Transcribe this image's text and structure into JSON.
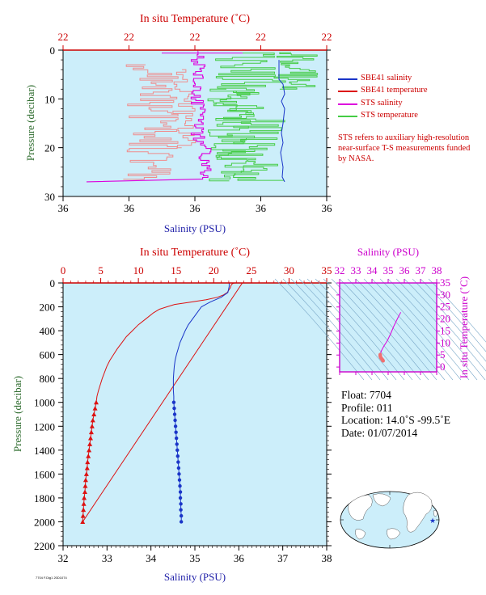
{
  "colors": {
    "plot_bg": "#cceefa",
    "temp_axis": "#cc0000",
    "salinity_axis_label": "#1f1fa8",
    "pressure_axis_label": "#2d6b2d",
    "ts_axis": "#cc00cc",
    "sbe41_salinity": "#1a35c8",
    "sbe41_temperature": "#dd1111",
    "sts_salinity": "#dd00dd",
    "sts_temperature": "#44cc44",
    "sts_temperature_top": "#f08c8c"
  },
  "top_panel": {
    "title_temp": "In situ Temperature (˚C)",
    "temp_ticks": [
      "22",
      "22",
      "22",
      "22",
      "22"
    ],
    "xlabel": "Salinity (PSU)",
    "sal_ticks": [
      "36",
      "36",
      "36",
      "36",
      "36"
    ],
    "ylabel": "Pressure (decibar)",
    "p_ticks": [
      "0",
      "10",
      "20",
      "30"
    ]
  },
  "legend": {
    "items": [
      {
        "label": "SBE41 salinity",
        "color": "#1a35c8"
      },
      {
        "label": "SBE41 temperature",
        "color": "#dd1111"
      },
      {
        "label": "STS salinity",
        "color": "#dd00dd"
      },
      {
        "label": "STS temperature",
        "color": "#44cc44"
      }
    ],
    "note": "STS refers to auxiliary high-resolution near-surface T-S measurements funded by NASA."
  },
  "main_panel": {
    "title_temp": "In situ Temperature (˚C)",
    "temp_ticks": [
      "0",
      "5",
      "10",
      "15",
      "20",
      "25",
      "30",
      "35"
    ],
    "xlabel": "Salinity (PSU)",
    "sal_ticks": [
      "32",
      "33",
      "34",
      "35",
      "36",
      "37",
      "38"
    ],
    "ylabel": "Pressure (decibar)",
    "p_ticks": [
      "0",
      "200",
      "400",
      "600",
      "800",
      "1000",
      "1200",
      "1400",
      "1600",
      "1800",
      "2000",
      "2200"
    ]
  },
  "ts_panel": {
    "title": "Salinity (PSU)",
    "x_ticks": [
      "32",
      "33",
      "34",
      "35",
      "36",
      "37",
      "38"
    ],
    "ylabel": "In situ Temperature (˚C)",
    "y_ticks": [
      "0",
      "5",
      "10",
      "15",
      "20",
      "25",
      "30",
      "35"
    ]
  },
  "float_info": {
    "float": "Float:  7704",
    "profile": "Profile:  011",
    "location": "Location:  14.0˚S  -99.5˚E",
    "date": "Date:  01/07/2014"
  },
  "footer": {
    "tag": "7704 F.Dig1 20D1074"
  },
  "chart_data": [
    {
      "type": "line",
      "title": "In situ Temperature (˚C)",
      "xlabel": "Salinity (PSU)",
      "ylabel": "Pressure (decibar)",
      "ylim": [
        30,
        0
      ],
      "note": "Near-surface detail panel; tick labels are all printed as 36 (salinity) and 22 (temperature).",
      "series": [
        {
          "name": "SBE41 salinity",
          "points": [
            [
              36.0,
              2
            ],
            [
              36.0,
              6
            ],
            [
              36.0,
              9
            ],
            [
              36.0,
              17
            ],
            [
              36.0,
              27
            ]
          ]
        },
        {
          "name": "SBE41 temperature",
          "points": [
            [
              22.0,
              0
            ],
            [
              22.0,
              0.3
            ]
          ]
        },
        {
          "name": "STS salinity",
          "points": [
            [
              36.0,
              0
            ],
            [
              36.0,
              10
            ],
            [
              36.0,
              20
            ],
            [
              36.0,
              27
            ]
          ]
        },
        {
          "name": "STS temperature",
          "points": [
            [
              22.0,
              0
            ],
            [
              22.0,
              10
            ],
            [
              22.0,
              20
            ],
            [
              22.0,
              27
            ]
          ]
        }
      ]
    },
    {
      "type": "line",
      "title": "In situ Temperature (˚C)",
      "xlabel": "Salinity (PSU)",
      "ylabel": "Pressure (decibar)",
      "xlim_salinity": [
        32,
        38
      ],
      "xlim_temperature": [
        0,
        35
      ],
      "ylim": [
        2200,
        0
      ],
      "series": [
        {
          "name": "SBE41 temperature",
          "axis": "temperature",
          "points": [
            [
              22.8,
              0
            ],
            [
              22.5,
              5
            ],
            [
              22.3,
              20
            ],
            [
              22.2,
              40
            ],
            [
              22.0,
              60
            ],
            [
              21.8,
              80
            ],
            [
              21.3,
              100
            ],
            [
              20.5,
              120
            ],
            [
              19.0,
              140
            ],
            [
              17.0,
              160
            ],
            [
              14.8,
              180
            ],
            [
              13.8,
              200
            ],
            [
              12.8,
              220
            ],
            [
              12.0,
              250
            ],
            [
              11.0,
              300
            ],
            [
              10.0,
              350
            ],
            [
              9.2,
              400
            ],
            [
              8.4,
              450
            ],
            [
              7.8,
              500
            ],
            [
              7.2,
              550
            ],
            [
              6.7,
              600
            ],
            [
              6.2,
              650
            ],
            [
              5.8,
              700
            ],
            [
              5.5,
              750
            ],
            [
              5.2,
              800
            ],
            [
              4.95,
              850
            ],
            [
              4.7,
              900
            ],
            [
              4.5,
              950
            ],
            [
              4.4,
              1000
            ],
            [
              4.25,
              1050
            ],
            [
              4.1,
              1100
            ],
            [
              3.95,
              1150
            ],
            [
              3.85,
              1200
            ],
            [
              3.75,
              1250
            ],
            [
              3.65,
              1300
            ],
            [
              3.55,
              1350
            ],
            [
              3.45,
              1400
            ],
            [
              3.35,
              1450
            ],
            [
              3.25,
              1500
            ],
            [
              3.2,
              1550
            ],
            [
              3.1,
              1600
            ],
            [
              3.0,
              1650
            ],
            [
              2.95,
              1700
            ],
            [
              2.9,
              1750
            ],
            [
              2.8,
              1800
            ],
            [
              2.75,
              1850
            ],
            [
              2.7,
              1900
            ],
            [
              2.65,
              1950
            ],
            [
              2.6,
              2000
            ]
          ]
        },
        {
          "name": "SBE41 salinity",
          "axis": "salinity",
          "points": [
            [
              35.78,
              0
            ],
            [
              35.78,
              30
            ],
            [
              35.75,
              80
            ],
            [
              35.6,
              120
            ],
            [
              35.35,
              160
            ],
            [
              35.15,
              200
            ],
            [
              35.05,
              250
            ],
            [
              34.95,
              300
            ],
            [
              34.85,
              350
            ],
            [
              34.78,
              400
            ],
            [
              34.72,
              450
            ],
            [
              34.66,
              500
            ],
            [
              34.62,
              550
            ],
            [
              34.58,
              600
            ],
            [
              34.55,
              650
            ],
            [
              34.53,
              700
            ],
            [
              34.52,
              750
            ],
            [
              34.51,
              800
            ],
            [
              34.51,
              850
            ],
            [
              34.51,
              900
            ],
            [
              34.52,
              950
            ],
            [
              34.52,
              1000
            ],
            [
              34.53,
              1050
            ],
            [
              34.54,
              1100
            ],
            [
              34.55,
              1150
            ],
            [
              34.56,
              1200
            ],
            [
              34.57,
              1250
            ],
            [
              34.58,
              1300
            ],
            [
              34.59,
              1350
            ],
            [
              34.6,
              1400
            ],
            [
              34.61,
              1450
            ],
            [
              34.62,
              1500
            ],
            [
              34.63,
              1550
            ],
            [
              34.64,
              1600
            ],
            [
              34.65,
              1650
            ],
            [
              34.66,
              1700
            ],
            [
              34.67,
              1750
            ],
            [
              34.67,
              1800
            ],
            [
              34.68,
              1850
            ],
            [
              34.68,
              1900
            ],
            [
              34.69,
              1950
            ],
            [
              34.69,
              2000
            ]
          ]
        }
      ]
    },
    {
      "type": "scatter",
      "title": "Salinity (PSU)",
      "xlabel": "Salinity (PSU)",
      "ylabel": "In situ Temperature (˚C)",
      "xlim": [
        32,
        38
      ],
      "ylim": [
        -2,
        35
      ],
      "series": [
        {
          "name": "T-S profile",
          "points": [
            [
              35.78,
              22.8
            ],
            [
              35.6,
              20.5
            ],
            [
              35.35,
              17.0
            ],
            [
              35.15,
              13.8
            ],
            [
              34.95,
              11.0
            ],
            [
              34.78,
              9.2
            ],
            [
              34.66,
              7.8
            ],
            [
              34.58,
              6.7
            ],
            [
              34.53,
              5.8
            ],
            [
              34.51,
              5.2
            ],
            [
              34.51,
              4.7
            ],
            [
              34.52,
              4.4
            ],
            [
              34.55,
              3.85
            ],
            [
              34.6,
              3.45
            ],
            [
              34.64,
              3.1
            ],
            [
              34.67,
              2.8
            ],
            [
              34.69,
              2.6
            ]
          ]
        }
      ]
    }
  ]
}
